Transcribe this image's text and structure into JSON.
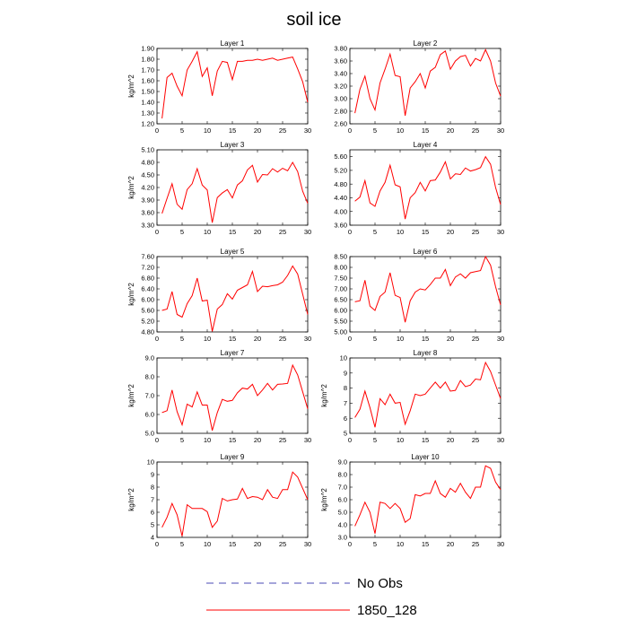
{
  "figure": {
    "title": "soil ice",
    "legend": [
      {
        "label": "No Obs",
        "color": "#4b4bb4",
        "dash": "8,6"
      },
      {
        "label": "1850_128",
        "color": "#ff0000",
        "dash": ""
      }
    ]
  },
  "chart_data": [
    {
      "type": "line",
      "title": "Layer 1",
      "ylabel": "kg/m^2",
      "xlim": [
        0,
        30
      ],
      "ylim": [
        1.2,
        1.9
      ],
      "xticks": [
        0,
        5,
        10,
        15,
        20,
        25,
        30
      ],
      "yticks": [
        "1.20",
        "1.30",
        "1.40",
        "1.50",
        "1.60",
        "1.70",
        "1.80",
        "1.90"
      ],
      "series": [
        {
          "color": "#ff0000",
          "x": [
            1,
            2,
            3,
            4,
            5,
            6,
            7,
            8,
            9,
            10,
            11,
            12,
            13,
            14,
            15,
            16,
            17,
            18,
            19,
            20,
            21,
            22,
            23,
            24,
            25,
            26,
            27,
            28,
            29,
            30
          ],
          "y": [
            1.25,
            1.63,
            1.67,
            1.55,
            1.46,
            1.7,
            1.78,
            1.87,
            1.64,
            1.72,
            1.46,
            1.69,
            1.78,
            1.77,
            1.61,
            1.78,
            1.78,
            1.79,
            1.79,
            1.8,
            1.79,
            1.8,
            1.81,
            1.79,
            1.8,
            1.81,
            1.82,
            1.71,
            1.59,
            1.4
          ]
        }
      ]
    },
    {
      "type": "line",
      "title": "Layer 2",
      "ylabel": "",
      "xlim": [
        0,
        30
      ],
      "ylim": [
        2.6,
        3.8
      ],
      "xticks": [
        0,
        5,
        10,
        15,
        20,
        25,
        30
      ],
      "yticks": [
        "2.60",
        "2.80",
        "3.00",
        "3.20",
        "3.40",
        "3.60",
        "3.80"
      ],
      "series": [
        {
          "color": "#ff0000",
          "x": [
            1,
            2,
            3,
            4,
            5,
            6,
            7,
            8,
            9,
            10,
            11,
            12,
            13,
            14,
            15,
            16,
            17,
            18,
            19,
            20,
            21,
            22,
            23,
            24,
            25,
            26,
            27,
            28,
            29,
            30
          ],
          "y": [
            2.77,
            3.15,
            3.36,
            3.0,
            2.82,
            3.25,
            3.47,
            3.71,
            3.37,
            3.35,
            2.73,
            3.17,
            3.27,
            3.4,
            3.17,
            3.44,
            3.5,
            3.7,
            3.76,
            3.47,
            3.6,
            3.67,
            3.69,
            3.52,
            3.64,
            3.6,
            3.78,
            3.6,
            3.25,
            3.04
          ]
        }
      ]
    },
    {
      "type": "line",
      "title": "Layer 3",
      "ylabel": "kg/m^2",
      "xlim": [
        0,
        30
      ],
      "ylim": [
        3.3,
        5.1
      ],
      "xticks": [
        0,
        5,
        10,
        15,
        20,
        25,
        30
      ],
      "yticks": [
        "3.30",
        "3.60",
        "3.90",
        "4.20",
        "4.50",
        "4.80",
        "5.10"
      ],
      "series": [
        {
          "color": "#ff0000",
          "x": [
            1,
            2,
            3,
            4,
            5,
            6,
            7,
            8,
            9,
            10,
            11,
            12,
            13,
            14,
            15,
            16,
            17,
            18,
            19,
            20,
            21,
            22,
            23,
            24,
            25,
            26,
            27,
            28,
            29,
            30
          ],
          "y": [
            3.58,
            3.94,
            4.29,
            3.8,
            3.68,
            4.15,
            4.29,
            4.65,
            4.26,
            4.14,
            3.36,
            3.96,
            4.07,
            4.15,
            3.95,
            4.26,
            4.36,
            4.62,
            4.73,
            4.33,
            4.51,
            4.5,
            4.65,
            4.57,
            4.66,
            4.6,
            4.8,
            4.58,
            4.11,
            3.82
          ]
        }
      ]
    },
    {
      "type": "line",
      "title": "Layer 4",
      "ylabel": "",
      "xlim": [
        0,
        30
      ],
      "ylim": [
        3.6,
        5.8
      ],
      "xticks": [
        0,
        5,
        10,
        15,
        20,
        25,
        30
      ],
      "yticks": [
        "3.60",
        "4.00",
        "4.40",
        "4.80",
        "5.20",
        "5.60"
      ],
      "series": [
        {
          "color": "#ff0000",
          "x": [
            1,
            2,
            3,
            4,
            5,
            6,
            7,
            8,
            9,
            10,
            11,
            12,
            13,
            14,
            15,
            16,
            17,
            18,
            19,
            20,
            21,
            22,
            23,
            24,
            25,
            26,
            27,
            28,
            29,
            30
          ],
          "y": [
            4.3,
            4.42,
            4.9,
            4.25,
            4.15,
            4.6,
            4.85,
            5.35,
            4.78,
            4.72,
            3.78,
            4.4,
            4.55,
            4.85,
            4.6,
            4.9,
            4.92,
            5.15,
            5.45,
            4.95,
            5.1,
            5.08,
            5.27,
            5.18,
            5.22,
            5.28,
            5.6,
            5.38,
            4.7,
            4.2
          ]
        }
      ]
    },
    {
      "type": "line",
      "title": "Layer 5",
      "ylabel": "kg/m^2",
      "xlim": [
        0,
        30
      ],
      "ylim": [
        4.8,
        7.6
      ],
      "xticks": [
        0,
        5,
        10,
        15,
        20,
        25,
        30
      ],
      "yticks": [
        "4.80",
        "5.20",
        "5.60",
        "6.00",
        "6.40",
        "6.80",
        "7.20",
        "7.60"
      ],
      "series": [
        {
          "color": "#ff0000",
          "x": [
            1,
            2,
            3,
            4,
            5,
            6,
            7,
            8,
            9,
            10,
            11,
            12,
            13,
            14,
            15,
            16,
            17,
            18,
            19,
            20,
            21,
            22,
            23,
            24,
            25,
            26,
            27,
            28,
            29,
            30
          ],
          "y": [
            5.6,
            5.65,
            6.3,
            5.45,
            5.35,
            5.85,
            6.15,
            6.8,
            5.95,
            5.98,
            4.82,
            5.65,
            5.82,
            6.22,
            6.02,
            6.35,
            6.45,
            6.55,
            7.05,
            6.3,
            6.5,
            6.48,
            6.52,
            6.55,
            6.65,
            6.9,
            7.25,
            6.95,
            6.2,
            5.45
          ]
        }
      ]
    },
    {
      "type": "line",
      "title": "Layer 6",
      "ylabel": "",
      "xlim": [
        0,
        30
      ],
      "ylim": [
        5.0,
        8.5
      ],
      "xticks": [
        0,
        5,
        10,
        15,
        20,
        25,
        30
      ],
      "yticks": [
        "5.00",
        "5.50",
        "6.00",
        "6.50",
        "7.00",
        "7.50",
        "8.00",
        "8.50"
      ],
      "series": [
        {
          "color": "#ff0000",
          "x": [
            1,
            2,
            3,
            4,
            5,
            6,
            7,
            8,
            9,
            10,
            11,
            12,
            13,
            14,
            15,
            16,
            17,
            18,
            19,
            20,
            21,
            22,
            23,
            24,
            25,
            26,
            27,
            28,
            29,
            30
          ],
          "y": [
            6.4,
            6.45,
            7.4,
            6.2,
            6.0,
            6.65,
            6.85,
            7.75,
            6.7,
            6.6,
            5.45,
            6.45,
            6.85,
            7.0,
            6.95,
            7.2,
            7.5,
            7.5,
            7.9,
            7.15,
            7.55,
            7.7,
            7.5,
            7.75,
            7.8,
            7.85,
            8.5,
            8.1,
            7.1,
            6.25
          ]
        }
      ]
    },
    {
      "type": "line",
      "title": "Layer 7",
      "ylabel": "kg/m^2",
      "xlim": [
        0,
        30
      ],
      "ylim": [
        5.0,
        9.0
      ],
      "xticks": [
        0,
        5,
        10,
        15,
        20,
        25,
        30
      ],
      "yticks": [
        "5.0",
        "6.0",
        "7.0",
        "8.0",
        "9.0"
      ],
      "series": [
        {
          "color": "#ff0000",
          "x": [
            1,
            2,
            3,
            4,
            5,
            6,
            7,
            8,
            9,
            10,
            11,
            12,
            13,
            14,
            15,
            16,
            17,
            18,
            19,
            20,
            21,
            22,
            23,
            24,
            25,
            26,
            27,
            28,
            29,
            30
          ],
          "y": [
            6.1,
            6.2,
            7.3,
            6.15,
            5.45,
            6.55,
            6.4,
            7.2,
            6.5,
            6.5,
            5.15,
            6.1,
            6.8,
            6.7,
            6.75,
            7.15,
            7.4,
            7.35,
            7.6,
            7.0,
            7.3,
            7.65,
            7.3,
            7.6,
            7.62,
            7.65,
            8.62,
            8.1,
            7.2,
            6.3
          ]
        }
      ]
    },
    {
      "type": "line",
      "title": "Layer 8",
      "ylabel": "kg/m^2",
      "xlim": [
        0,
        30
      ],
      "ylim": [
        5,
        10
      ],
      "xticks": [
        0,
        5,
        10,
        15,
        20,
        25,
        30
      ],
      "yticks": [
        "5",
        "6",
        "7",
        "8",
        "9",
        "10"
      ],
      "series": [
        {
          "color": "#ff0000",
          "x": [
            1,
            2,
            3,
            4,
            5,
            6,
            7,
            8,
            9,
            10,
            11,
            12,
            13,
            14,
            15,
            16,
            17,
            18,
            19,
            20,
            21,
            22,
            23,
            24,
            25,
            26,
            27,
            28,
            29,
            30
          ],
          "y": [
            6.05,
            6.6,
            7.8,
            6.7,
            5.4,
            7.3,
            6.9,
            7.6,
            7.0,
            7.05,
            5.6,
            6.5,
            7.6,
            7.5,
            7.6,
            8.0,
            8.4,
            8.0,
            8.4,
            7.8,
            7.85,
            8.5,
            8.1,
            8.2,
            8.6,
            8.55,
            9.7,
            9.1,
            8.2,
            7.3
          ]
        }
      ]
    },
    {
      "type": "line",
      "title": "Layer 9",
      "ylabel": "kg/m^2",
      "xlim": [
        0,
        30
      ],
      "ylim": [
        4,
        10
      ],
      "xticks": [
        0,
        5,
        10,
        15,
        20,
        25,
        30
      ],
      "yticks": [
        "4",
        "5",
        "6",
        "7",
        "8",
        "9",
        "10"
      ],
      "series": [
        {
          "color": "#ff0000",
          "x": [
            1,
            2,
            3,
            4,
            5,
            6,
            7,
            8,
            9,
            10,
            11,
            12,
            13,
            14,
            15,
            16,
            17,
            18,
            19,
            20,
            21,
            22,
            23,
            24,
            25,
            26,
            27,
            28,
            29,
            30
          ],
          "y": [
            4.8,
            5.6,
            6.7,
            5.8,
            4.1,
            6.6,
            6.3,
            6.3,
            6.3,
            6.05,
            4.8,
            5.3,
            7.1,
            6.9,
            7.0,
            7.05,
            7.9,
            7.1,
            7.25,
            7.2,
            7.0,
            7.8,
            7.2,
            7.1,
            7.8,
            7.8,
            9.2,
            8.8,
            7.9,
            7.0
          ]
        }
      ]
    },
    {
      "type": "line",
      "title": "Layer 10",
      "ylabel": "kg/m^2",
      "xlim": [
        0,
        30
      ],
      "ylim": [
        3.0,
        9.0
      ],
      "xticks": [
        0,
        5,
        10,
        15,
        20,
        25,
        30
      ],
      "yticks": [
        "3.0",
        "4.0",
        "5.0",
        "6.0",
        "7.0",
        "8.0",
        "9.0"
      ],
      "series": [
        {
          "color": "#ff0000",
          "x": [
            1,
            2,
            3,
            4,
            5,
            6,
            7,
            8,
            9,
            10,
            11,
            12,
            13,
            14,
            15,
            16,
            17,
            18,
            19,
            20,
            21,
            22,
            23,
            24,
            25,
            26,
            27,
            28,
            29,
            30
          ],
          "y": [
            3.9,
            4.8,
            5.8,
            5.0,
            3.3,
            5.8,
            5.7,
            5.3,
            5.7,
            5.3,
            4.2,
            4.5,
            6.4,
            6.3,
            6.5,
            6.5,
            7.5,
            6.5,
            6.2,
            6.9,
            6.6,
            7.3,
            6.6,
            6.1,
            7.0,
            7.0,
            8.7,
            8.5,
            7.4,
            6.8
          ]
        }
      ]
    }
  ]
}
